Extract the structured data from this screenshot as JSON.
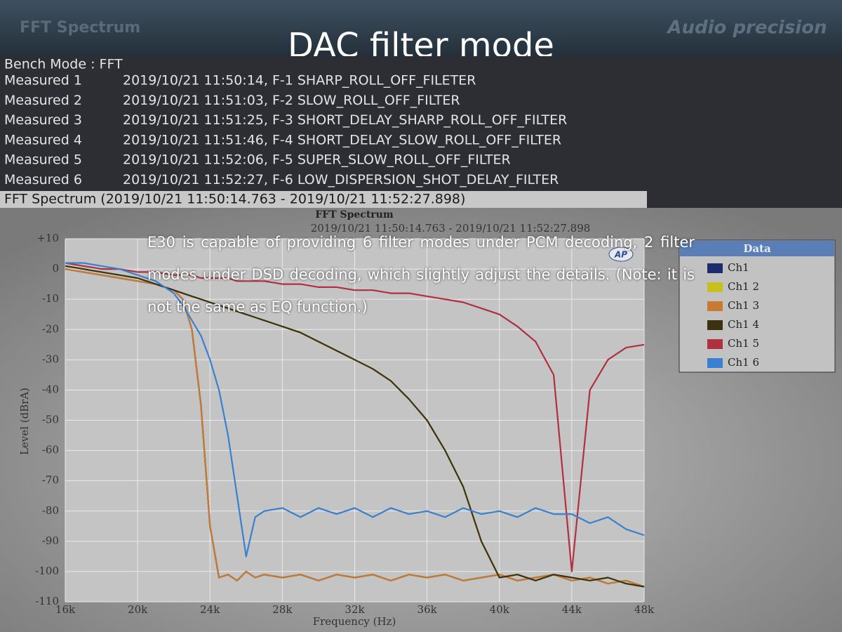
{
  "slide": {
    "header_label": "FFT Spectrum",
    "logo": "Audio precision",
    "title": "DAC filter mode",
    "bench_mode": "Bench Mode : FFT",
    "measurements": [
      {
        "label": "Measured 1",
        "text": "2019/10/21 11:50:14, F-1 SHARP_ROLL_OFF_FILETER"
      },
      {
        "label": "Measured 2",
        "text": "2019/10/21 11:51:03, F-2 SLOW_ROLL_OFF_FILTER"
      },
      {
        "label": "Measured 3",
        "text": "2019/10/21 11:51:25, F-3 SHORT_DELAY_SHARP_ROLL_OFF_FILTER"
      },
      {
        "label": "Measured 4",
        "text": "2019/10/21 11:51:46, F-4 SHORT_DELAY_SLOW_ROLL_OFF_FILTER"
      },
      {
        "label": "Measured 5",
        "text": "2019/10/21 11:52:06, F-5 SUPER_SLOW_ROLL_OFF_FILTER"
      },
      {
        "label": "Measured 6",
        "text": "2019/10/21 11:52:27, F-6 LOW_DISPERSION_SHOT_DELAY_FILTER"
      }
    ],
    "spectrum_bar": "FFT Spectrum (2019/10/21 11:50:14.763 - 2019/10/21 11:52:27.898)",
    "note": "E30 is capable of providing 6 filter modes under PCM decoding, 2 filter modes under DSD decoding, which slightly adjust the details. (Note: it is not the same as EQ function.)"
  },
  "chart_data": {
    "type": "line",
    "title": "FFT Spectrum",
    "subtitle": "2019/10/21 11:50:14.763 - 2019/10/21 11:52:27.898",
    "badge": "AP",
    "x_label": "Frequency (Hz)",
    "y_label": "Level (dBrA)",
    "legend_title": "Data",
    "legend_position": "right",
    "grid": true,
    "xlim": [
      16000,
      48000
    ],
    "ylim": [
      -110,
      10
    ],
    "xticks": [
      {
        "value": 16000,
        "label": "16k"
      },
      {
        "value": 20000,
        "label": "20k"
      },
      {
        "value": 24000,
        "label": "24k"
      },
      {
        "value": 28000,
        "label": "28k"
      },
      {
        "value": 32000,
        "label": "32k"
      },
      {
        "value": 36000,
        "label": "36k"
      },
      {
        "value": 40000,
        "label": "40k"
      },
      {
        "value": 44000,
        "label": "44k"
      },
      {
        "value": 48000,
        "label": "48k"
      }
    ],
    "yticks": [
      {
        "value": 10,
        "label": "+10"
      },
      0,
      -10,
      -20,
      -30,
      -40,
      -50,
      -60,
      -70,
      -80,
      -90,
      -100,
      -110
    ],
    "x": [
      16000,
      17000,
      18000,
      19000,
      20000,
      21000,
      22000,
      22500,
      23000,
      23500,
      24000,
      24500,
      25000,
      25500,
      26000,
      26500,
      27000,
      28000,
      29000,
      30000,
      31000,
      32000,
      33000,
      34000,
      35000,
      36000,
      37000,
      38000,
      39000,
      40000,
      41000,
      42000,
      43000,
      44000,
      45000,
      46000,
      47000,
      48000
    ],
    "series": [
      {
        "name": "Ch1",
        "color": "#1c2c6c",
        "values": [
          0,
          -1,
          -2,
          -3,
          -4,
          -5,
          -7,
          -10,
          -20,
          -45,
          -85,
          -102,
          -101,
          -103,
          -100,
          -102,
          -101,
          -102,
          -101,
          -103,
          -101,
          -102,
          -101,
          -103,
          -101,
          -102,
          -101,
          -103,
          -102,
          -101,
          -103,
          -102,
          -101,
          -103,
          -102,
          -104,
          -103,
          -105
        ]
      },
      {
        "name": "Ch1 2",
        "color": "#c8c020",
        "values": [
          1,
          0,
          -1,
          -2,
          -3,
          -5,
          -7,
          -8,
          -9,
          -10,
          -11,
          -12,
          -13,
          -14,
          -15,
          -16,
          -17,
          -19,
          -21,
          -24,
          -27,
          -30,
          -33,
          -37,
          -43,
          -50,
          -60,
          -72,
          -90,
          -102,
          -101,
          -103,
          -101,
          -102,
          -103,
          -102,
          -104,
          -105
        ]
      },
      {
        "name": "Ch1 3",
        "color": "#c87a30",
        "values": [
          0,
          -1,
          -2,
          -3,
          -4,
          -5,
          -7,
          -10,
          -20,
          -45,
          -85,
          -102,
          -101,
          -103,
          -100,
          -102,
          -101,
          -102,
          -101,
          -103,
          -101,
          -102,
          -101,
          -103,
          -101,
          -102,
          -101,
          -103,
          -102,
          -101,
          -103,
          -102,
          -101,
          -103,
          -102,
          -104,
          -103,
          -105
        ]
      },
      {
        "name": "Ch1 4",
        "color": "#3c3212",
        "values": [
          1,
          0,
          -1,
          -2,
          -3,
          -5,
          -7,
          -8,
          -9,
          -10,
          -11,
          -12,
          -13,
          -14,
          -15,
          -16,
          -17,
          -19,
          -21,
          -24,
          -27,
          -30,
          -33,
          -37,
          -43,
          -50,
          -60,
          -72,
          -90,
          -102,
          -101,
          -103,
          -101,
          -102,
          -103,
          -102,
          -104,
          -105
        ]
      },
      {
        "name": "Ch1 5",
        "color": "#b03040",
        "values": [
          2,
          1,
          0,
          0,
          -1,
          -1,
          -2,
          -2,
          -2,
          -3,
          -3,
          -3,
          -3,
          -4,
          -4,
          -4,
          -4,
          -5,
          -5,
          -6,
          -6,
          -7,
          -7,
          -8,
          -8,
          -9,
          -10,
          -11,
          -13,
          -15,
          -19,
          -24,
          -35,
          -100,
          -40,
          -30,
          -26,
          -25
        ]
      },
      {
        "name": "Ch1 6",
        "color": "#3a80d0",
        "values": [
          2,
          2,
          1,
          0,
          -2,
          -4,
          -8,
          -12,
          -17,
          -22,
          -30,
          -40,
          -55,
          -75,
          -95,
          -82,
          -80,
          -79,
          -82,
          -79,
          -81,
          -79,
          -82,
          -79,
          -81,
          -80,
          -82,
          -79,
          -81,
          -80,
          -82,
          -79,
          -81,
          -81,
          -84,
          -82,
          -86,
          -88
        ]
      }
    ]
  }
}
